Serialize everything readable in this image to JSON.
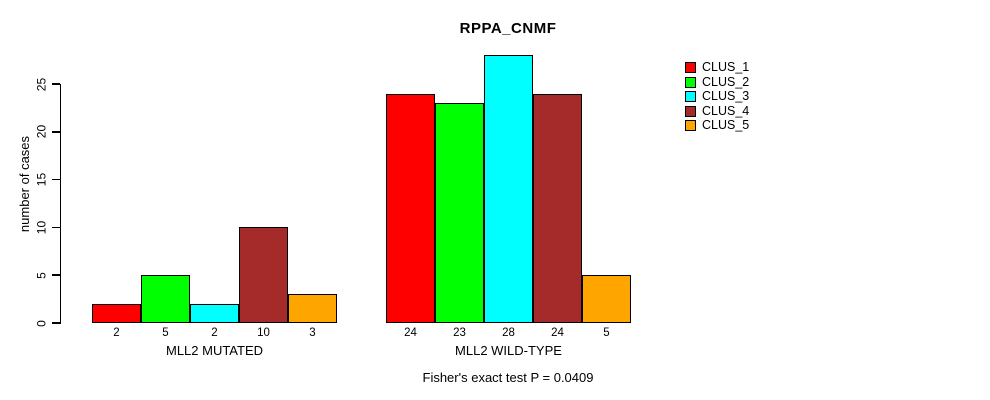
{
  "chart_data": {
    "type": "bar",
    "title": "RPPA_CNMF",
    "ylabel": "number of cases",
    "xlabel": "",
    "ylim": [
      0,
      28
    ],
    "yticks": [
      0,
      5,
      10,
      15,
      20,
      25
    ],
    "grid": false,
    "legend_position": "right-outside",
    "groups": [
      {
        "label": "MLL2 MUTATED",
        "values": [
          2,
          5,
          2,
          10,
          3
        ]
      },
      {
        "label": "MLL2 WILD-TYPE",
        "values": [
          24,
          23,
          28,
          24,
          5
        ]
      }
    ],
    "series": [
      {
        "name": "CLUS_1",
        "color": "#FF0000"
      },
      {
        "name": "CLUS_2",
        "color": "#00FF00"
      },
      {
        "name": "CLUS_3",
        "color": "#00FFFF"
      },
      {
        "name": "CLUS_4",
        "color": "#A52A2A"
      },
      {
        "name": "CLUS_5",
        "color": "#FFA500"
      }
    ],
    "annotation": "Fisher's exact test P = 0.0409",
    "bar_value_labels_shown": true,
    "axis_color": "#000000",
    "background_color": "#FFFFFF"
  }
}
